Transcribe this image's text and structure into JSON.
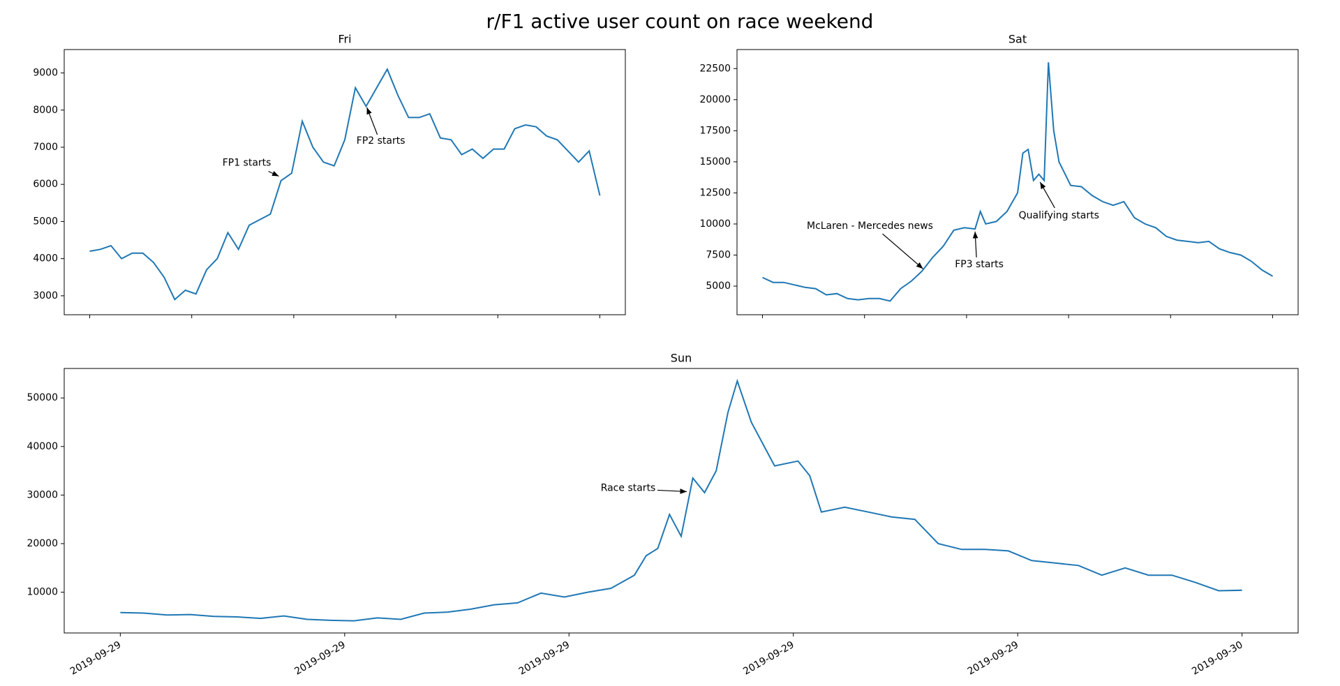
{
  "title": "r/F1 active user count on race weekend",
  "chart_data": [
    {
      "type": "line",
      "title": "Fri",
      "color": "#1f77b4",
      "x": [
        0,
        0.5,
        1,
        1.5,
        2,
        2.5,
        3,
        3.5,
        4,
        4.5,
        5,
        5.5,
        6,
        6.5,
        7,
        7.5,
        8,
        8.5,
        9,
        9.5,
        10,
        10.5,
        11,
        11.5,
        12,
        12.5,
        13,
        13.5,
        14,
        14.5,
        15,
        15.5,
        16,
        16.5,
        17,
        17.5,
        18,
        18.5,
        19,
        19.5,
        20,
        20.5,
        21,
        21.5,
        22,
        22.5,
        23,
        23.5,
        24
      ],
      "values": [
        4200,
        4250,
        4350,
        4000,
        4150,
        4150,
        3900,
        3500,
        2900,
        3150,
        3050,
        3700,
        4000,
        4700,
        4250,
        4900,
        5050,
        5200,
        6100,
        6300,
        7700,
        7000,
        6600,
        6500,
        7200,
        8600,
        8100,
        8600,
        9100,
        8400,
        7800,
        7800,
        7900,
        7250,
        7200,
        6800,
        6950,
        6700,
        6950,
        6950,
        7500,
        7600,
        7550,
        7300,
        7200,
        6900,
        6600,
        6900,
        5700
      ],
      "xlim": [
        -1.2,
        25.2
      ],
      "xticks": [
        0,
        4.8,
        9.6,
        14.4,
        19.2,
        24
      ],
      "show_xtick_labels": false,
      "ylim": [
        2490,
        9630
      ],
      "yticks": [
        3000,
        4000,
        5000,
        6000,
        7000,
        8000,
        9000
      ],
      "annotations": [
        {
          "text": "FP1 starts",
          "x": 8.9,
          "y": 6220
        },
        {
          "text": "FP2 starts",
          "x": 13.04,
          "y": 8070
        }
      ]
    },
    {
      "type": "line",
      "title": "Sat",
      "color": "#1f77b4",
      "x": [
        0,
        0.5,
        1,
        1.5,
        2,
        2.5,
        3,
        3.5,
        4,
        4.5,
        5,
        5.5,
        6,
        6.5,
        7,
        7.5,
        8,
        8.5,
        9,
        9.5,
        10,
        10.25,
        10.5,
        11,
        11.5,
        12,
        12.25,
        12.5,
        12.75,
        13,
        13.25,
        13.45,
        13.7,
        13.95,
        14.5,
        15,
        15.5,
        16,
        16.5,
        17,
        17.5,
        18,
        18.5,
        19,
        19.5,
        20,
        20.5,
        21,
        21.5,
        22,
        22.5,
        23,
        23.5,
        24
      ],
      "values": [
        5700,
        5300,
        5300,
        5100,
        4900,
        4800,
        4300,
        4400,
        4000,
        3900,
        4000,
        4000,
        3800,
        4800,
        5400,
        6200,
        7300,
        8200,
        9500,
        9700,
        9600,
        11000,
        10000,
        10200,
        11000,
        12500,
        15700,
        16000,
        13500,
        14000,
        13500,
        23000,
        17500,
        15000,
        13100,
        13000,
        12300,
        11800,
        11500,
        11800,
        10500,
        10000,
        9700,
        9000,
        8700,
        8600,
        8500,
        8600,
        8000,
        7700,
        7500,
        7000,
        6300,
        5800
      ],
      "xlim": [
        -1.2,
        25.2
      ],
      "xticks": [
        0,
        4.8,
        9.6,
        14.4,
        19.2,
        24
      ],
      "show_xtick_labels": false,
      "ylim": [
        2700,
        24030
      ],
      "yticks": [
        5000,
        7500,
        10000,
        12500,
        15000,
        17500,
        20000,
        22500
      ],
      "annotations": [
        {
          "text": "McLaren - Mercedes news",
          "x": 7.55,
          "y": 6400
        },
        {
          "text": "FP3 starts",
          "x": 10.0,
          "y": 9390
        },
        {
          "text": "Qualifying starts",
          "x": 13.06,
          "y": 13370
        }
      ]
    },
    {
      "type": "line",
      "title": "Sun",
      "color": "#1f77b4",
      "x": [
        0,
        0.5,
        1,
        1.5,
        2,
        2.5,
        3,
        3.5,
        4,
        4.5,
        5,
        5.5,
        6,
        6.5,
        7,
        7.5,
        8,
        8.5,
        9,
        9.5,
        10,
        10.5,
        11,
        11.25,
        11.5,
        11.75,
        12,
        12.25,
        12.5,
        12.75,
        13,
        13.2,
        13.5,
        14,
        14.5,
        14.75,
        15,
        15.5,
        16,
        16.5,
        17,
        17.5,
        18,
        18.5,
        19,
        19.5,
        20,
        20.5,
        21,
        21.5,
        22,
        22.5,
        23,
        23.5,
        24
      ],
      "values": [
        5800,
        5700,
        5300,
        5400,
        5000,
        4900,
        4600,
        5100,
        4400,
        4200,
        4100,
        4700,
        4400,
        5700,
        5900,
        6500,
        7400,
        7800,
        9800,
        9000,
        10000,
        10800,
        13500,
        17500,
        19000,
        26000,
        21500,
        33500,
        30500,
        35000,
        47000,
        53500,
        45000,
        36000,
        37000,
        34000,
        26500,
        27500,
        26500,
        25500,
        25000,
        20000,
        18800,
        18800,
        18500,
        16500,
        16000,
        15500,
        13500,
        15000,
        13500,
        13500,
        12000,
        10300,
        10400
      ],
      "xlim": [
        -1.2,
        25.2
      ],
      "xticks": [
        {
          "value": 0,
          "label": "2019-09-29"
        },
        {
          "value": 4.8,
          "label": "2019-09-29"
        },
        {
          "value": 9.6,
          "label": "2019-09-29"
        },
        {
          "value": 14.4,
          "label": "2019-09-29"
        },
        {
          "value": 19.2,
          "label": "2019-09-29"
        },
        {
          "value": 24,
          "label": "2019-09-30"
        }
      ],
      "show_xtick_labels": true,
      "ylim": [
        1600,
        56070
      ],
      "yticks": [
        10000,
        20000,
        30000,
        40000,
        50000
      ],
      "annotations": [
        {
          "text": "Race starts",
          "x": 12.12,
          "y": 30710
        }
      ]
    }
  ]
}
